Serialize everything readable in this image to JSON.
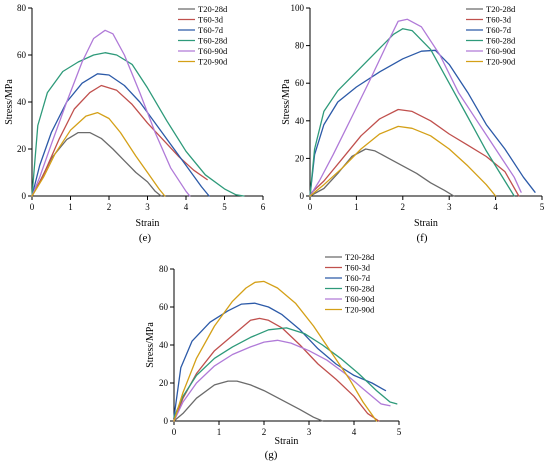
{
  "chart_data": [
    {
      "type": "line",
      "panel_label": "(e)",
      "xlabel": "Strain",
      "ylabel": "Stress/MPa",
      "xlim": [
        0,
        6
      ],
      "ylim": [
        0,
        80
      ],
      "xticks": [
        "0",
        "1",
        "2",
        "3",
        "4",
        "5",
        "6"
      ],
      "yticks": [
        "0",
        "20",
        "40",
        "60",
        "80"
      ],
      "legend_position": "top-right",
      "series": [
        {
          "name": "T20-28d",
          "color": "#6b6b6b",
          "x": [
            0,
            0.2,
            0.5,
            0.9,
            1.2,
            1.5,
            1.8,
            2.1,
            2.4,
            2.7,
            3.0,
            3.2,
            3.35
          ],
          "y": [
            0,
            6,
            16,
            24,
            27,
            27,
            24.5,
            20,
            15,
            10,
            6,
            2,
            0
          ]
        },
        {
          "name": "T60-3d",
          "color": "#c0504d",
          "x": [
            0,
            0.3,
            0.7,
            1.1,
            1.5,
            1.8,
            2.2,
            2.6,
            3.0,
            3.4,
            3.8,
            4.2,
            4.55
          ],
          "y": [
            0,
            9,
            24,
            37,
            44,
            47,
            45,
            39,
            31,
            24,
            17,
            11,
            7
          ]
        },
        {
          "name": "T60-7d",
          "color": "#2c5aa8",
          "x": [
            0,
            0.2,
            0.5,
            0.9,
            1.3,
            1.7,
            2.0,
            2.4,
            2.8,
            3.2,
            3.6,
            4.0,
            4.4,
            4.6
          ],
          "y": [
            0,
            13,
            27,
            40,
            48,
            52,
            51.5,
            47,
            40,
            31,
            22,
            13,
            4,
            0
          ]
        },
        {
          "name": "T60-28d",
          "color": "#2e9a7a",
          "x": [
            0,
            0.15,
            0.4,
            0.8,
            1.2,
            1.6,
            1.9,
            2.2,
            2.6,
            3.0,
            3.5,
            4.0,
            4.5,
            5.0,
            5.3,
            5.5
          ],
          "y": [
            0,
            30,
            44,
            53,
            57,
            60,
            61,
            60,
            56,
            46,
            32,
            19,
            9,
            3,
            0.5,
            0
          ]
        },
        {
          "name": "T60-90d",
          "color": "#b07ad8",
          "x": [
            0,
            0.2,
            0.5,
            0.9,
            1.3,
            1.6,
            1.9,
            2.1,
            2.4,
            2.8,
            3.2,
            3.6,
            4.0,
            4.1
          ],
          "y": [
            0,
            8,
            22,
            40,
            57,
            67,
            70.5,
            69,
            60,
            44,
            27,
            12,
            2,
            0
          ]
        },
        {
          "name": "T20-90d",
          "color": "#d4a017",
          "x": [
            0,
            0.3,
            0.6,
            1.0,
            1.4,
            1.7,
            2.0,
            2.3,
            2.7,
            3.0,
            3.3,
            3.45
          ],
          "y": [
            0,
            8,
            18,
            28,
            34,
            35.5,
            33,
            27,
            17,
            10,
            3,
            0
          ]
        }
      ]
    },
    {
      "type": "line",
      "panel_label": "(f)",
      "xlabel": "Strain",
      "ylabel": "Stress/MPa",
      "xlim": [
        0,
        5
      ],
      "ylim": [
        0,
        100
      ],
      "xticks": [
        "0",
        "1",
        "2",
        "3",
        "4",
        "5"
      ],
      "yticks": [
        "0",
        "20",
        "40",
        "60",
        "80",
        "100"
      ],
      "legend_position": "top-right",
      "series": [
        {
          "name": "T20-28d",
          "color": "#6b6b6b",
          "x": [
            0,
            0.3,
            0.6,
            0.9,
            1.2,
            1.4,
            1.7,
            2.0,
            2.3,
            2.6,
            2.9,
            3.1
          ],
          "y": [
            0,
            4,
            12,
            21,
            25,
            24,
            20,
            16,
            12,
            7,
            3,
            0
          ]
        },
        {
          "name": "T60-3d",
          "color": "#c0504d",
          "x": [
            0,
            0.3,
            0.7,
            1.1,
            1.5,
            1.9,
            2.2,
            2.6,
            3.0,
            3.4,
            3.8,
            4.2,
            4.5
          ],
          "y": [
            1,
            8,
            20,
            32,
            41,
            46,
            45,
            40,
            33,
            27,
            21,
            13,
            0
          ]
        },
        {
          "name": "T60-7d",
          "color": "#2c5aa8",
          "x": [
            0,
            0.1,
            0.3,
            0.6,
            1.0,
            1.5,
            2.0,
            2.4,
            2.7,
            3.0,
            3.4,
            3.8,
            4.2,
            4.6,
            4.85
          ],
          "y": [
            0,
            22,
            38,
            50,
            58,
            66,
            73,
            77,
            77.5,
            70,
            55,
            38,
            25,
            10,
            2
          ]
        },
        {
          "name": "T60-28d",
          "color": "#2e9a7a",
          "x": [
            0,
            0.1,
            0.3,
            0.6,
            1.0,
            1.4,
            1.8,
            2.0,
            2.2,
            2.6,
            3.0,
            3.4,
            3.8,
            4.2,
            4.4
          ],
          "y": [
            0,
            25,
            45,
            56,
            66,
            76,
            86,
            89,
            88,
            78,
            60,
            42,
            24,
            8,
            0
          ]
        },
        {
          "name": "T60-90d",
          "color": "#b07ad8",
          "x": [
            0,
            0.2,
            0.5,
            0.9,
            1.3,
            1.7,
            1.9,
            2.1,
            2.4,
            2.8,
            3.2,
            3.6,
            4.0,
            4.4,
            4.55
          ],
          "y": [
            0,
            8,
            22,
            42,
            62,
            83,
            93,
            94,
            90,
            75,
            55,
            40,
            25,
            10,
            2
          ]
        },
        {
          "name": "T20-90d",
          "color": "#d4a017",
          "x": [
            0,
            0.3,
            0.7,
            1.1,
            1.5,
            1.9,
            2.2,
            2.6,
            3.0,
            3.4,
            3.8,
            4.0
          ],
          "y": [
            0,
            6,
            15,
            25,
            33,
            37,
            36,
            32,
            25,
            16,
            6,
            0
          ]
        }
      ]
    },
    {
      "type": "line",
      "panel_label": "(g)",
      "xlabel": "Strain",
      "ylabel": "Stress/MPa",
      "xlim": [
        0,
        5
      ],
      "ylim": [
        0,
        80
      ],
      "xticks": [
        "0",
        "1",
        "2",
        "3",
        "4",
        "5"
      ],
      "yticks": [
        "0",
        "20",
        "40",
        "60",
        "80"
      ],
      "legend_position": "top-right",
      "series": [
        {
          "name": "T20-28d",
          "color": "#6b6b6b",
          "x": [
            0,
            0.2,
            0.5,
            0.9,
            1.2,
            1.4,
            1.7,
            2.0,
            2.4,
            2.8,
            3.1,
            3.3
          ],
          "y": [
            0,
            4,
            12,
            19,
            21,
            21,
            19,
            16,
            11,
            6,
            2,
            0
          ]
        },
        {
          "name": "T60-3d",
          "color": "#c0504d",
          "x": [
            0,
            0.2,
            0.5,
            0.9,
            1.3,
            1.7,
            1.9,
            2.1,
            2.4,
            2.8,
            3.2,
            3.6,
            4.0,
            4.3,
            4.55
          ],
          "y": [
            0,
            12,
            25,
            37,
            45,
            53,
            54,
            53,
            49,
            40,
            30,
            22,
            13,
            4,
            0
          ]
        },
        {
          "name": "T60-7d",
          "color": "#2c5aa8",
          "x": [
            0,
            0.15,
            0.4,
            0.8,
            1.2,
            1.5,
            1.8,
            2.1,
            2.4,
            2.8,
            3.2,
            3.6,
            4.0,
            4.4,
            4.7
          ],
          "y": [
            2,
            28,
            42,
            52,
            58,
            61.5,
            62,
            60,
            56,
            48,
            38,
            30,
            24,
            20,
            16
          ]
        },
        {
          "name": "T60-28d",
          "color": "#2e9a7a",
          "x": [
            0,
            0.2,
            0.5,
            0.9,
            1.3,
            1.7,
            2.1,
            2.5,
            2.9,
            3.3,
            3.7,
            4.1,
            4.5,
            4.8,
            4.95
          ],
          "y": [
            2,
            13,
            24,
            33,
            39,
            44,
            48,
            49,
            46,
            40,
            33,
            25,
            16,
            10,
            9
          ]
        },
        {
          "name": "T60-90d",
          "color": "#b07ad8",
          "x": [
            0,
            0.2,
            0.5,
            0.9,
            1.3,
            1.7,
            2.0,
            2.3,
            2.6,
            3.0,
            3.4,
            3.8,
            4.2,
            4.6,
            4.8
          ],
          "y": [
            0,
            10,
            20,
            29,
            35,
            39,
            41.5,
            42.5,
            41,
            37,
            32,
            25,
            17,
            9,
            8
          ]
        },
        {
          "name": "T20-90d",
          "color": "#d4a017",
          "x": [
            0,
            0.2,
            0.5,
            0.9,
            1.3,
            1.6,
            1.8,
            2.0,
            2.3,
            2.7,
            3.1,
            3.5,
            3.9,
            4.2,
            4.5
          ],
          "y": [
            0,
            15,
            33,
            50,
            63,
            70,
            73,
            73.5,
            70,
            62,
            50,
            36,
            22,
            10,
            0
          ]
        }
      ]
    }
  ]
}
